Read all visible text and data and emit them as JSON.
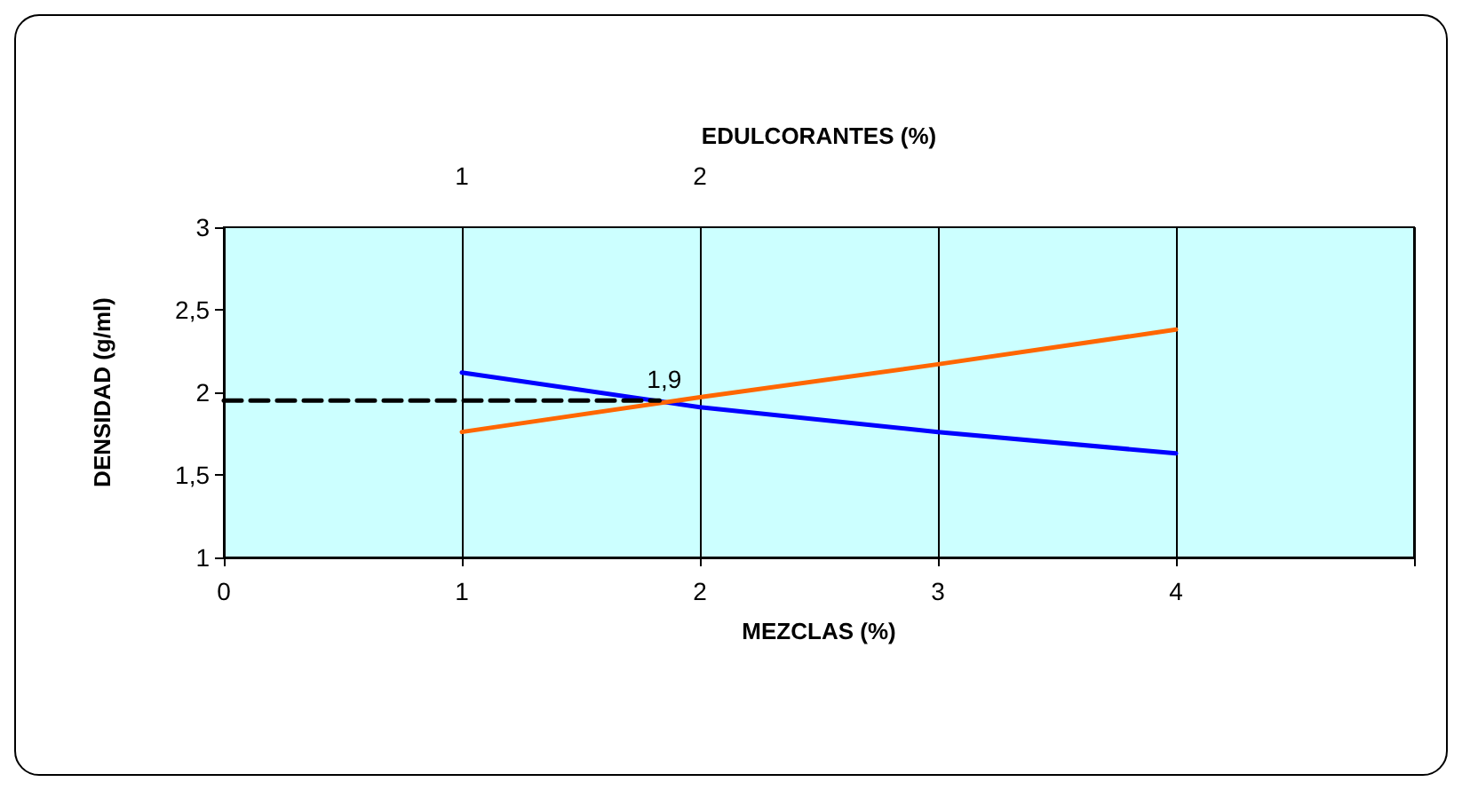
{
  "chart_data": {
    "type": "line",
    "xlabel": "MEZCLAS (%)",
    "ylabel": "DENSIDAD (g/ml)",
    "x2label": "EDULCORANTES (%)",
    "x": [
      1,
      2,
      3,
      4
    ],
    "series": [
      {
        "color": "#0000ff",
        "values": [
          2.12,
          1.91,
          1.76,
          1.63
        ]
      },
      {
        "color": "#ff6600",
        "values": [
          1.76,
          1.97,
          2.17,
          2.38
        ]
      },
      {
        "color": "#000000",
        "x": [
          0,
          1.83
        ],
        "values": [
          1.95,
          1.95
        ],
        "line_style": "dashed"
      }
    ],
    "xlim": [
      0,
      5
    ],
    "xticks": [
      0,
      1,
      2,
      3,
      4,
      {
        "value": 5,
        "label": null
      }
    ],
    "x2lim": [
      0,
      5
    ],
    "x2ticks": [
      1,
      2
    ],
    "ylim": [
      1,
      3
    ],
    "yticks": [
      1,
      {
        "value": 1.5,
        "label": "1,5"
      },
      2,
      {
        "value": 2.5,
        "label": "2,5"
      },
      3
    ],
    "grid": "x",
    "line_style": "solid",
    "annotations": [
      {
        "text": "1,9",
        "x": 1.85,
        "y": 1.95
      }
    ]
  }
}
